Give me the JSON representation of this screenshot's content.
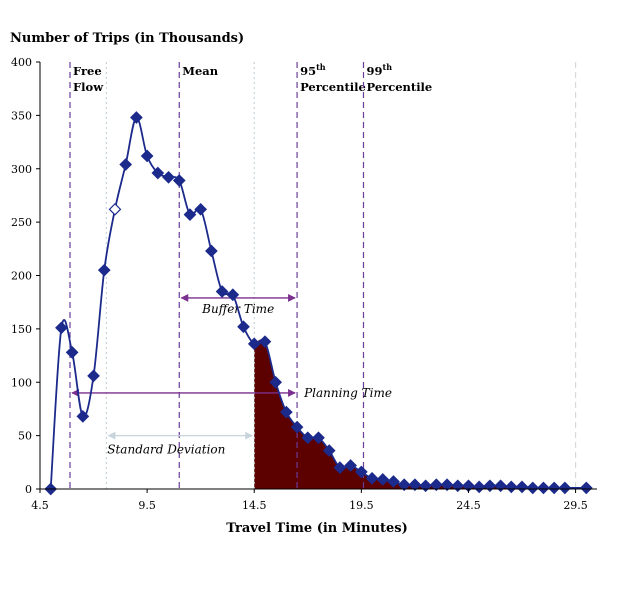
{
  "chart_data": {
    "type": "line",
    "ylabel": "Number of Trips (in Thousands)",
    "xlabel": "Travel Time (in Minutes)",
    "xlim": [
      4.5,
      30.5
    ],
    "ylim": [
      0,
      400
    ],
    "x_ticks": [
      4.5,
      9.5,
      14.5,
      19.5,
      24.5,
      29.5
    ],
    "y_ticks": [
      0,
      50,
      100,
      150,
      200,
      250,
      300,
      350,
      400
    ],
    "grid": false,
    "marker": "diamond",
    "line_color": "#1c2a8c",
    "fill_color": "#5c0000",
    "fill_from_x": 14.5,
    "series": [
      {
        "x": [
          5,
          5.5,
          6,
          6.5,
          7,
          7.5,
          8,
          8.5,
          9,
          9.5,
          10,
          10.5,
          11,
          11.5,
          12,
          12.5,
          13,
          13.5,
          14,
          14.5,
          15,
          15.5,
          16,
          16.5,
          17,
          17.5,
          18,
          18.5,
          19,
          19.5,
          20,
          20.5,
          21,
          21.5,
          22,
          22.5,
          23,
          23.5,
          24,
          24.5,
          25,
          25.5,
          26,
          26.5,
          27,
          27.5,
          28,
          28.5,
          29,
          30
        ],
        "y": [
          0,
          151,
          128,
          68,
          106,
          205,
          262,
          304,
          348,
          312,
          296,
          292,
          289,
          257,
          262,
          223,
          185,
          182,
          152,
          136,
          138,
          100,
          72,
          58,
          48,
          48,
          36,
          20,
          22,
          16,
          10,
          9,
          7,
          4,
          4,
          3,
          4,
          4,
          3,
          3,
          2,
          3,
          3,
          2,
          2,
          1,
          1,
          1,
          1,
          1
        ]
      }
    ],
    "vlines": [
      {
        "key": "free_flow",
        "x": 5.9,
        "color": "#6a3d9a",
        "style": "dashed",
        "label_lines": [
          "Free",
          "Flow"
        ]
      },
      {
        "key": "sd_start",
        "x": 7.6,
        "color": "#c8d4dc",
        "style": "dotted",
        "label_lines": []
      },
      {
        "key": "mean",
        "x": 11.0,
        "color": "#6a3d9a",
        "style": "dashed",
        "label_lines": [
          "Mean"
        ]
      },
      {
        "key": "sd_end",
        "x": 14.5,
        "color": "#c8d4dc",
        "style": "dotted",
        "label_lines": []
      },
      {
        "key": "p95",
        "x": 16.5,
        "color": "#6a3d9a",
        "style": "dashed",
        "label_lines": [
          "95",
          "Percentile"
        ],
        "superscript": "th"
      },
      {
        "key": "p99",
        "x": 19.6,
        "color": "#6a3d9a",
        "style": "dashed",
        "label_lines": [
          "99",
          "Percentile"
        ],
        "superscript": "th"
      },
      {
        "key": "right_edge",
        "x": 29.5,
        "color": "#d9d9d9",
        "style": "dashed",
        "label_lines": []
      }
    ],
    "annotations": [
      {
        "key": "buffer_time",
        "label": "Buffer Time",
        "x_from": 11.0,
        "x_to": 16.5,
        "y": 179,
        "color": "#7b2f8e"
      },
      {
        "key": "planning_time",
        "label": "Planning Time",
        "x_from": 5.9,
        "x_to": 16.5,
        "y": 90,
        "color": "#7b2f8e"
      },
      {
        "key": "standard_deviation",
        "label": "Standard Deviation",
        "x_from": 7.6,
        "x_to": 14.5,
        "y": 50,
        "color": "#c8d4dc"
      }
    ]
  }
}
